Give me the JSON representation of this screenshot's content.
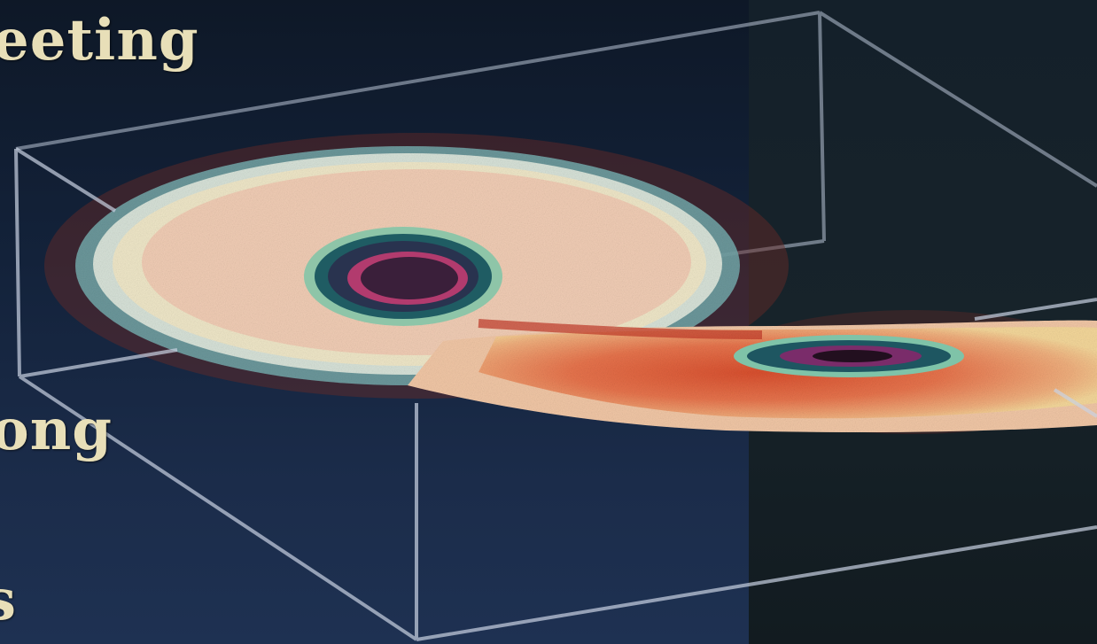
{
  "image": {
    "text_fragments": [
      "eeting",
      "ong",
      "s"
    ]
  }
}
